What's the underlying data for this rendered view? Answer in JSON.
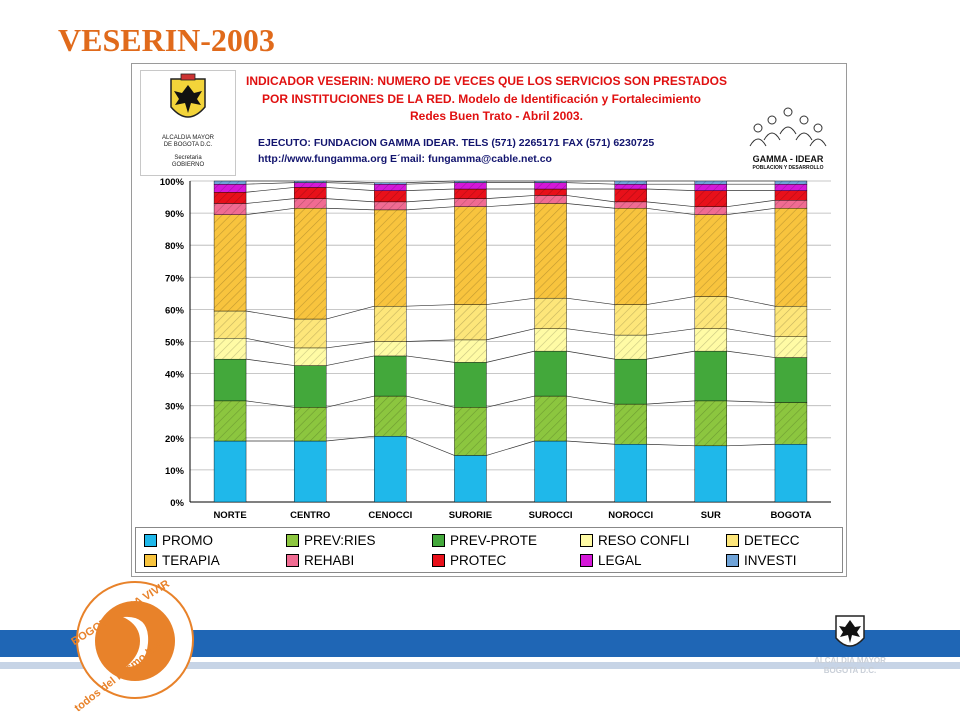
{
  "slide_title": "VESERIN-2003",
  "header": {
    "line1": "INDICADOR VESERIN: NUMERO DE VECES QUE LOS SERVICIOS SON PRESTADOS",
    "line2": "POR INSTITUCIONES DE LA RED. Modelo de Identificación y Fortalecimiento",
    "line3": "Redes Buen Trato - Abril 2003.",
    "line4": "EJECUTO: FUNDACION GAMMA IDEAR. TELS (571) 2265171 FAX (571) 6230725",
    "line5": "http://www.fungamma.org  E´mail: fungamma@cable.net.co"
  },
  "seal": {
    "line1": "ALCALDIA MAYOR",
    "line2": "DE BOGOTA D.C.",
    "line3": "Secretaria",
    "line4": "GOBIERNO"
  },
  "gamma_logo": {
    "name": "GAMMA - IDEAR",
    "tagline": "POBLACION Y DESARROLLO"
  },
  "bottom": {
    "logo_text_top": "BOGOTÁ PARA VIVIR",
    "logo_text_bottom": "todos del mismo lado",
    "alcaldia_line1": "ALCALDIA MAYOR",
    "alcaldia_line2": "BOGOTA D.C."
  },
  "colors": {
    "title": "#e06a1b",
    "band": "#1f66b5",
    "logo_orange": "#e8822a"
  },
  "chart_data": {
    "type": "bar",
    "stacked": true,
    "percent": true,
    "categories": [
      "NORTE",
      "CENTRO",
      "CENOCCI",
      "SURORIE",
      "SUROCCI",
      "NOROCCI",
      "SUR",
      "BOGOTA"
    ],
    "y_ticks": [
      "0%",
      "10%",
      "20%",
      "30%",
      "40%",
      "50%",
      "60%",
      "70%",
      "80%",
      "90%",
      "100%"
    ],
    "ylim": [
      0,
      100
    ],
    "series": [
      {
        "name": "PROMO",
        "color": "#1fb8ea",
        "values": [
          19,
          19,
          20.5,
          14.5,
          19,
          18,
          17.5,
          18
        ]
      },
      {
        "name": "PREV:RIES",
        "color": "#8cc63f",
        "values": [
          12.5,
          10.5,
          12.5,
          15,
          14,
          12.5,
          14,
          13
        ]
      },
      {
        "name": "PREV-PROTE",
        "color": "#43a83b",
        "values": [
          13,
          13,
          12.5,
          14,
          14,
          14,
          15.5,
          14
        ]
      },
      {
        "name": "RESO CONFLI",
        "color": "#fffba5",
        "values": [
          6.5,
          5.5,
          4.5,
          7,
          7,
          7.5,
          7,
          6.5
        ]
      },
      {
        "name": "DETECC",
        "color": "#fde67a",
        "values": [
          8.5,
          9,
          11,
          11,
          9.5,
          9.5,
          10,
          9.5
        ]
      },
      {
        "name": "TERAPIA",
        "color": "#f8c43e",
        "values": [
          30,
          34.5,
          30,
          30.5,
          29.5,
          30,
          25.5,
          30.5
        ]
      },
      {
        "name": "REHABI",
        "color": "#f06b92",
        "values": [
          3.5,
          3,
          2.5,
          2.5,
          2.5,
          2,
          2.5,
          2.5
        ]
      },
      {
        "name": "PROTEC",
        "color": "#e8101a",
        "values": [
          3.5,
          3.5,
          3.5,
          3,
          2,
          4,
          5,
          3
        ]
      },
      {
        "name": "LEGAL",
        "color": "#d418d8",
        "values": [
          2.5,
          1.5,
          2,
          2,
          2,
          1.5,
          2,
          2
        ]
      },
      {
        "name": "INVESTI",
        "color": "#6fa3d8",
        "values": [
          1,
          0.5,
          0.5,
          0.5,
          0.5,
          1,
          1,
          1
        ]
      }
    ]
  }
}
